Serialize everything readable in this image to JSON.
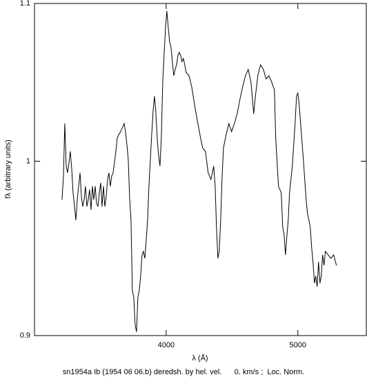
{
  "chart_data": {
    "type": "line",
    "title": "sn1954a Ib (1954 06 06.b) deredsh. by hel. vel.      0. km/s ;  Loc. Norm.",
    "xlabel": "λ (Å)",
    "ylabel": "fλ (arbitrary units)",
    "color": "#000000",
    "yscale": "log",
    "xlim": [
      3000,
      5520
    ],
    "ylim": [
      0.9,
      1.1
    ],
    "xticks": [
      4000,
      5000
    ],
    "yticks": [
      0.9,
      1,
      1.1
    ],
    "x": [
      3209,
      3220,
      3230,
      3241,
      3251,
      3262,
      3272,
      3283,
      3293,
      3304,
      3314,
      3325,
      3335,
      3346,
      3356,
      3366,
      3377,
      3387,
      3398,
      3408,
      3419,
      3429,
      3440,
      3450,
      3461,
      3471,
      3482,
      3492,
      3503,
      3513,
      3524,
      3534,
      3545,
      3555,
      3565,
      3576,
      3586,
      3597,
      3607,
      3618,
      3628,
      3639,
      3654,
      3670,
      3681,
      3691,
      3702,
      3712,
      3723,
      3733,
      3743,
      3754,
      3764,
      3775,
      3785,
      3796,
      3806,
      3817,
      3827,
      3838,
      3848,
      3859,
      3869,
      3880,
      3890,
      3901,
      3911,
      3921,
      3932,
      3942,
      3953,
      3963,
      3974,
      3984,
      3995,
      4005,
      4016,
      4026,
      4037,
      4047,
      4058,
      4068,
      4079,
      4089,
      4099,
      4110,
      4120,
      4131,
      4141,
      4152,
      4173,
      4194,
      4215,
      4236,
      4257,
      4277,
      4298,
      4319,
      4340,
      4361,
      4372,
      4382,
      4393,
      4403,
      4414,
      4424,
      4435,
      4455,
      4476,
      4497,
      4518,
      4539,
      4560,
      4581,
      4602,
      4623,
      4644,
      4665,
      4675,
      4696,
      4717,
      4738,
      4759,
      4780,
      4801,
      4822,
      4832,
      4853,
      4874,
      4885,
      4895,
      4906,
      4916,
      4927,
      4937,
      4958,
      4979,
      4990,
      5000,
      5010,
      5021,
      5042,
      5063,
      5073,
      5084,
      5094,
      5105,
      5115,
      5126,
      5136,
      5147,
      5157,
      5168,
      5178,
      5188,
      5199,
      5209,
      5230,
      5251,
      5272,
      5293
    ],
    "values": [
      0.977,
      0.991,
      1.023,
      0.997,
      0.993,
      0.999,
      1.006,
      0.995,
      0.981,
      0.973,
      0.965,
      0.977,
      0.985,
      0.993,
      0.979,
      0.973,
      0.977,
      0.985,
      0.973,
      0.977,
      0.983,
      0.971,
      0.985,
      0.977,
      0.985,
      0.975,
      0.973,
      0.981,
      0.987,
      0.973,
      0.985,
      0.973,
      0.979,
      0.989,
      0.993,
      0.985,
      0.991,
      0.993,
      0.999,
      1.006,
      1.014,
      1.016,
      1.018,
      1.021,
      1.023,
      1.018,
      1.01,
      1.001,
      0.977,
      0.965,
      0.925,
      0.921,
      0.906,
      0.902,
      0.921,
      0.925,
      0.933,
      0.945,
      0.947,
      0.943,
      0.953,
      0.965,
      0.985,
      1.001,
      1.016,
      1.031,
      1.04,
      1.031,
      1.014,
      1.004,
      0.997,
      1.014,
      1.049,
      1.066,
      1.084,
      1.095,
      1.084,
      1.075,
      1.071,
      1.062,
      1.053,
      1.057,
      1.06,
      1.066,
      1.068,
      1.066,
      1.062,
      1.064,
      1.06,
      1.055,
      1.053,
      1.046,
      1.035,
      1.025,
      1.016,
      1.008,
      1.006,
      0.993,
      0.989,
      0.997,
      0.985,
      0.961,
      0.943,
      0.947,
      0.965,
      0.989,
      1.008,
      1.016,
      1.023,
      1.018,
      1.023,
      1.029,
      1.038,
      1.046,
      1.053,
      1.057,
      1.049,
      1.029,
      1.038,
      1.053,
      1.06,
      1.057,
      1.051,
      1.053,
      1.049,
      1.044,
      1.014,
      0.985,
      0.981,
      0.961,
      0.957,
      0.945,
      0.955,
      0.965,
      0.981,
      0.997,
      1.023,
      1.04,
      1.042,
      1.035,
      1.023,
      1.001,
      0.977,
      0.969,
      0.965,
      0.961,
      0.949,
      0.941,
      0.929,
      0.933,
      0.927,
      0.941,
      0.929,
      0.933,
      0.945,
      0.939,
      0.947,
      0.945,
      0.943,
      0.945,
      0.939
    ]
  }
}
